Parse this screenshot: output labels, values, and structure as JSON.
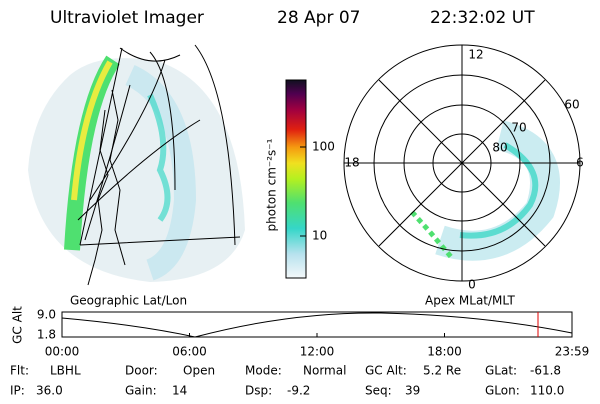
{
  "header": {
    "instrument": "Ultraviolet Imager",
    "date": "28 Apr 07",
    "time": "22:32:02 UT"
  },
  "colorbar": {
    "label": "photon cm⁻²s⁻¹",
    "ticks": [
      "100",
      "10"
    ]
  },
  "left_panel": {
    "label": "Geographic Lat/Lon"
  },
  "right_panel": {
    "label": "Apex MLat/MLT",
    "mlt_labels": [
      "12",
      "18",
      "6",
      "0"
    ],
    "lat_labels": [
      "60",
      "70",
      "80"
    ]
  },
  "altitude_plot": {
    "axis_label": "GC Alt",
    "yticks": [
      "9.0",
      "1.8"
    ],
    "xticks": [
      "00:00",
      "06:00",
      "12:00",
      "18:00",
      "23:59"
    ]
  },
  "info": [
    [
      [
        "Flt:",
        "LBHL"
      ],
      [
        "Door:",
        "Open"
      ],
      [
        "Mode:",
        "Normal"
      ],
      [
        "GC Alt:",
        "5.2 Re"
      ],
      [
        "GLat:",
        "-61.8"
      ]
    ],
    [
      [
        "IP:",
        "36.0"
      ],
      [
        "Gain:",
        "14"
      ],
      [
        "Dsp:",
        "-9.2"
      ],
      [
        "Seq:",
        "39"
      ],
      [
        "GLon:",
        "110.0"
      ]
    ]
  ]
}
